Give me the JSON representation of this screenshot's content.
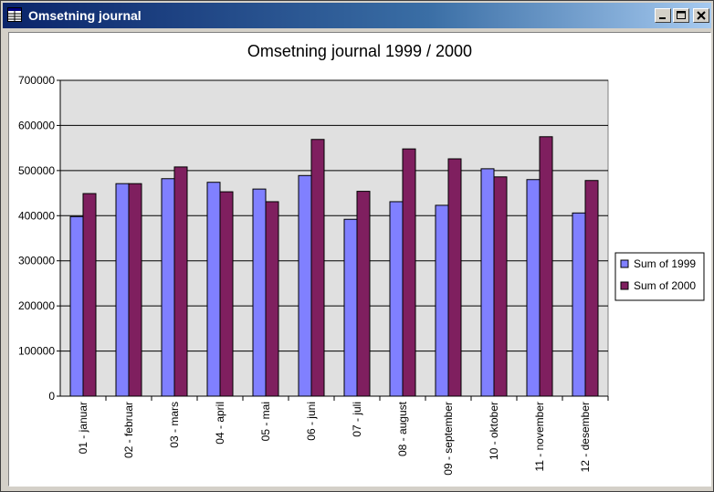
{
  "window": {
    "title": "Omsetning journal"
  },
  "colors": {
    "series_1999": "#8080ff",
    "series_2000": "#7f1f5f",
    "plot_bg": "#e0e0e0"
  },
  "icons": {
    "app": "datasheet-icon",
    "minimize": "minimize-icon",
    "maximize": "maximize-icon",
    "close": "close-icon"
  },
  "chart_data": {
    "type": "bar",
    "title": "Omsetning journal 1999 / 2000",
    "xlabel": "",
    "ylabel": "",
    "categories": [
      "01 - januar",
      "02 - februar",
      "03 - mars",
      "04 - april",
      "05 - mai",
      "06 - juni",
      "07 - juli",
      "08 - august",
      "09 - september",
      "10 - oktober",
      "11 - november",
      "12 - desember"
    ],
    "series": [
      {
        "name": "Sum of 1999",
        "values": [
          398000,
          471000,
          482000,
          474000,
          459000,
          489000,
          392000,
          431000,
          423000,
          504000,
          480000,
          406000
        ]
      },
      {
        "name": "Sum of 2000",
        "values": [
          449000,
          471000,
          508000,
          453000,
          431000,
          569000,
          454000,
          548000,
          526000,
          486000,
          575000,
          478000
        ]
      }
    ],
    "ylim": [
      0,
      700000
    ],
    "yticks": [
      "0",
      "100000",
      "200000",
      "300000",
      "400000",
      "500000",
      "600000",
      "700000"
    ],
    "grid": true,
    "legend": "right"
  }
}
